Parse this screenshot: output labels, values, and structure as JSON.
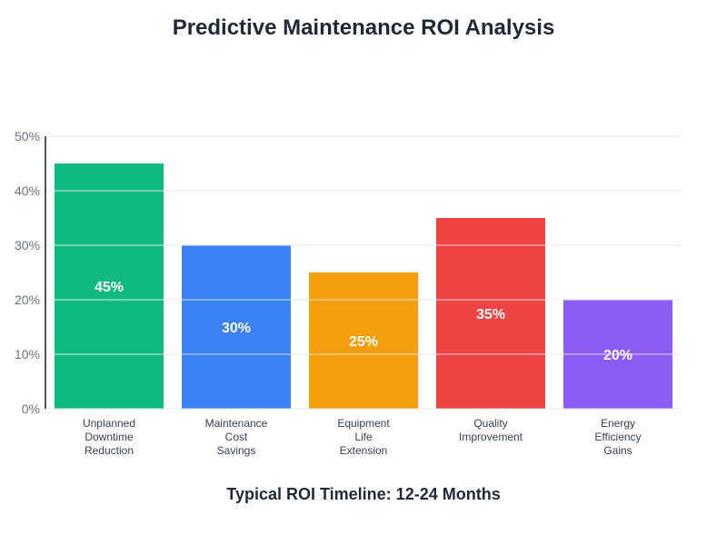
{
  "chart_data": {
    "type": "bar",
    "title": "Predictive Maintenance ROI Analysis",
    "footer": "Typical ROI Timeline: 12-24 Months",
    "categories": [
      [
        "Unplanned",
        "Downtime",
        "Reduction"
      ],
      [
        "Maintenance",
        "Cost",
        "Savings"
      ],
      [
        "Equipment",
        "Life",
        "Extension"
      ],
      [
        "Quality",
        "Improvement"
      ],
      [
        "Energy",
        "Efficiency",
        "Gains"
      ]
    ],
    "values": [
      45,
      30,
      25,
      35,
      20
    ],
    "data_labels": [
      "45%",
      "30%",
      "25%",
      "35%",
      "20%"
    ],
    "colors": [
      "#10b981",
      "#3b82f6",
      "#f59e0b",
      "#ef4444",
      "#8b5cf6"
    ],
    "yticks": [
      0,
      10,
      20,
      30,
      40,
      50
    ],
    "ytick_labels": [
      "0%",
      "10%",
      "20%",
      "30%",
      "40%",
      "50%"
    ],
    "ylim": [
      0,
      50
    ],
    "grid": true,
    "xlabel": "",
    "ylabel": ""
  }
}
